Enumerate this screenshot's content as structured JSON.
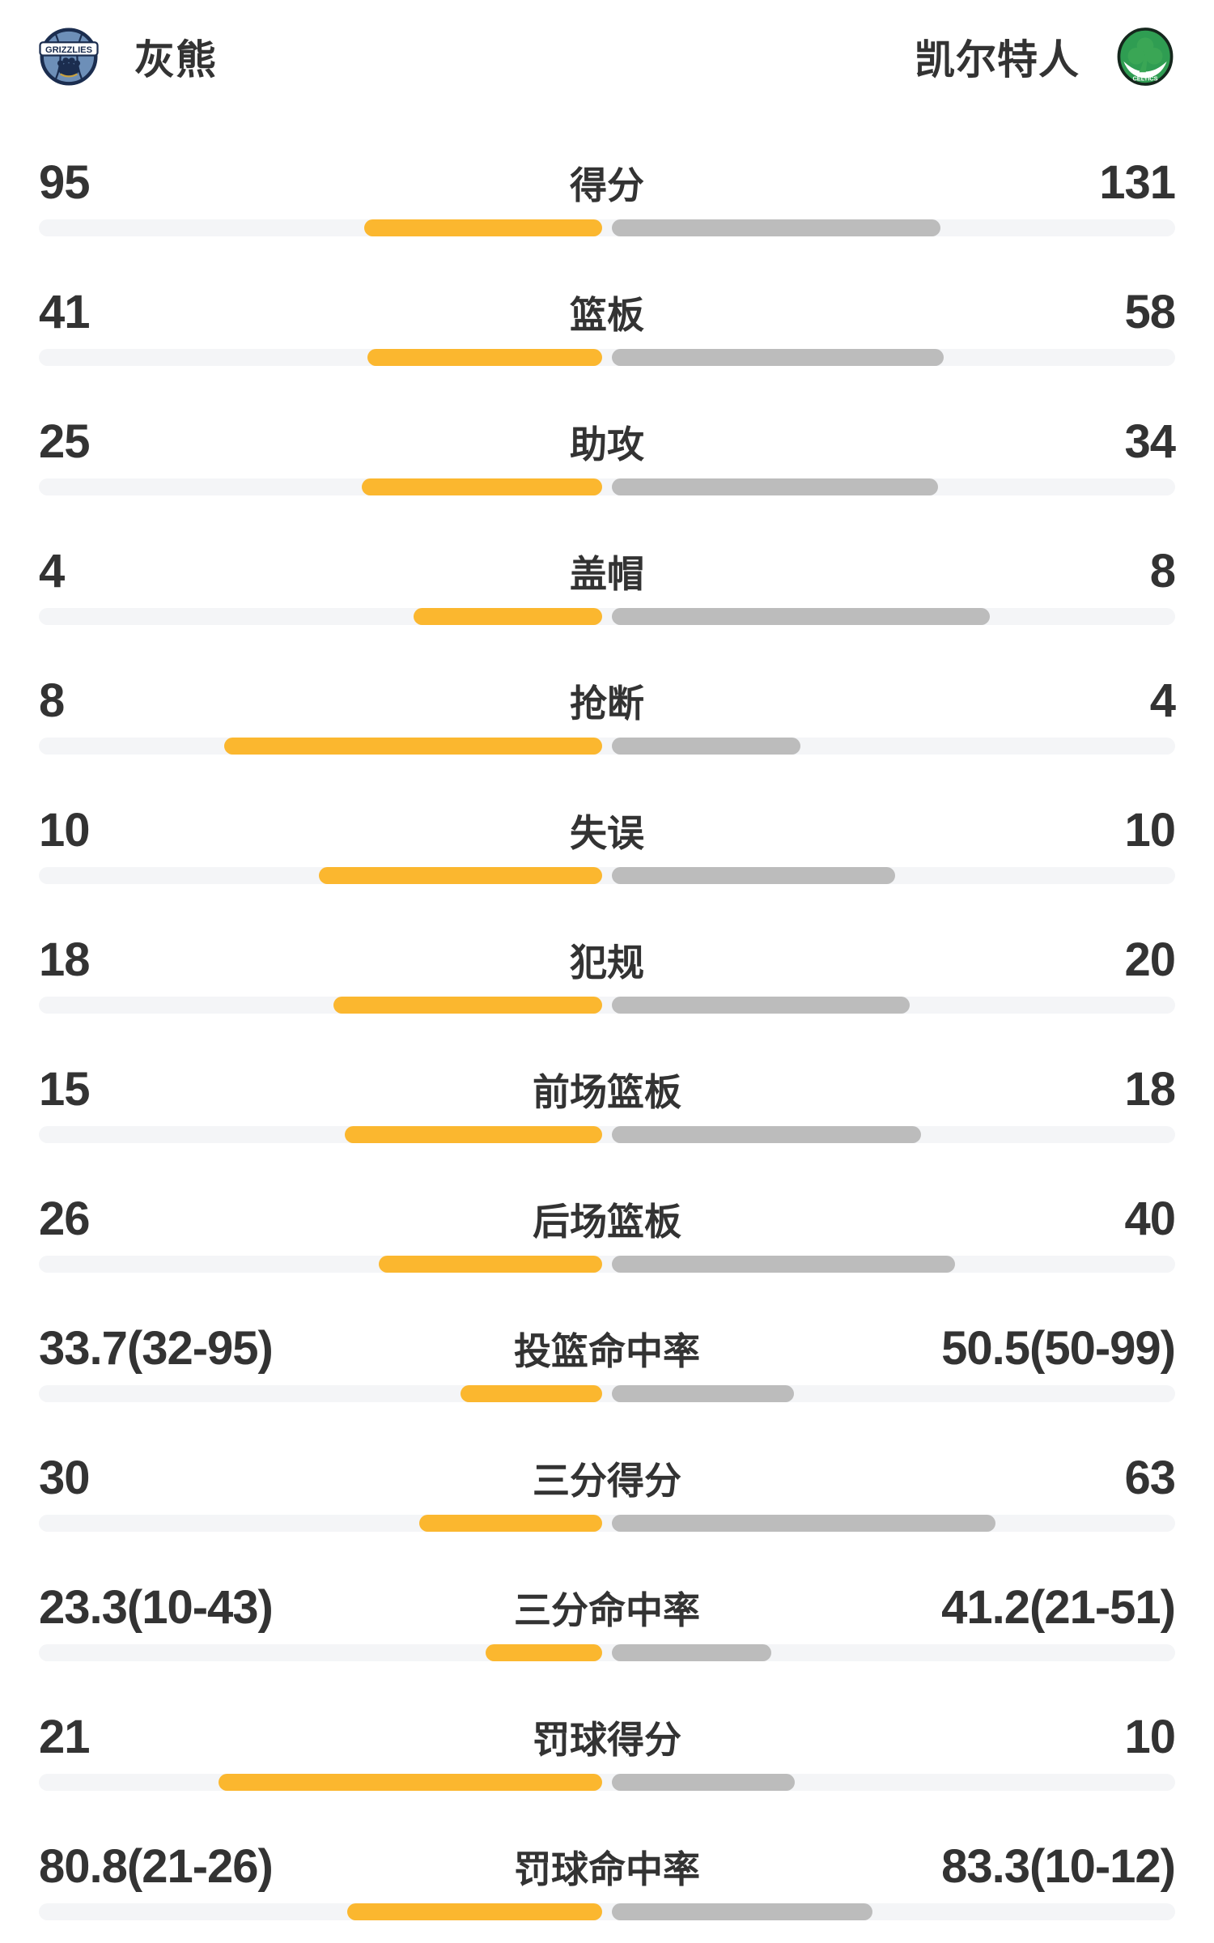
{
  "header": {
    "left_team": {
      "name": "灰熊",
      "logo_text": "GRIZZLIES"
    },
    "right_team": {
      "name": "凯尔特人",
      "logo_text": "CELTICS"
    }
  },
  "colors": {
    "home_bar": "#FBB72F",
    "away_bar": "#BCBCBC",
    "track": "#F4F5F7",
    "text": "#333333",
    "grizzlies_navy": "#1B2D4F",
    "grizzlies_blue": "#6D8FB8",
    "grizzlies_gold": "#C9A23F",
    "celtics_green": "#2F9D52",
    "celtics_dark": "#15271D"
  },
  "chart_data": {
    "type": "bar",
    "subtype": "paired-horizontal-comparison",
    "teams": [
      "灰熊",
      "凯尔特人"
    ],
    "legend_position": "none",
    "grid": false,
    "rows": [
      {
        "label": "得分",
        "left": "95",
        "right": "131",
        "left_value": 95,
        "right_value": 131,
        "kind": "count"
      },
      {
        "label": "篮板",
        "left": "41",
        "right": "58",
        "left_value": 41,
        "right_value": 58,
        "kind": "count"
      },
      {
        "label": "助攻",
        "left": "25",
        "right": "34",
        "left_value": 25,
        "right_value": 34,
        "kind": "count"
      },
      {
        "label": "盖帽",
        "left": "4",
        "right": "8",
        "left_value": 4,
        "right_value": 8,
        "kind": "count"
      },
      {
        "label": "抢断",
        "left": "8",
        "right": "4",
        "left_value": 8,
        "right_value": 4,
        "kind": "count"
      },
      {
        "label": "失误",
        "left": "10",
        "right": "10",
        "left_value": 10,
        "right_value": 10,
        "kind": "count"
      },
      {
        "label": "犯规",
        "left": "18",
        "right": "20",
        "left_value": 18,
        "right_value": 20,
        "kind": "count"
      },
      {
        "label": "前场篮板",
        "left": "15",
        "right": "18",
        "left_value": 15,
        "right_value": 18,
        "kind": "count"
      },
      {
        "label": "后场篮板",
        "left": "26",
        "right": "40",
        "left_value": 26,
        "right_value": 40,
        "kind": "count"
      },
      {
        "label": "投篮命中率",
        "left": "33.7(32-95)",
        "right": "50.5(50-99)",
        "left_value": 33.7,
        "right_value": 50.5,
        "kind": "pct"
      },
      {
        "label": "三分得分",
        "left": "30",
        "right": "63",
        "left_value": 30,
        "right_value": 63,
        "kind": "count"
      },
      {
        "label": "三分命中率",
        "left": "23.3(10-43)",
        "right": "41.2(21-51)",
        "left_value": 23.3,
        "right_value": 41.2,
        "kind": "pct"
      },
      {
        "label": "罚球得分",
        "left": "21",
        "right": "10",
        "left_value": 21,
        "right_value": 10,
        "kind": "count"
      },
      {
        "label": "罚球命中率",
        "left": "80.8(21-26)",
        "right": "83.3(10-12)",
        "left_value": 80.8,
        "right_value": 83.3,
        "kind": "pct"
      }
    ]
  }
}
